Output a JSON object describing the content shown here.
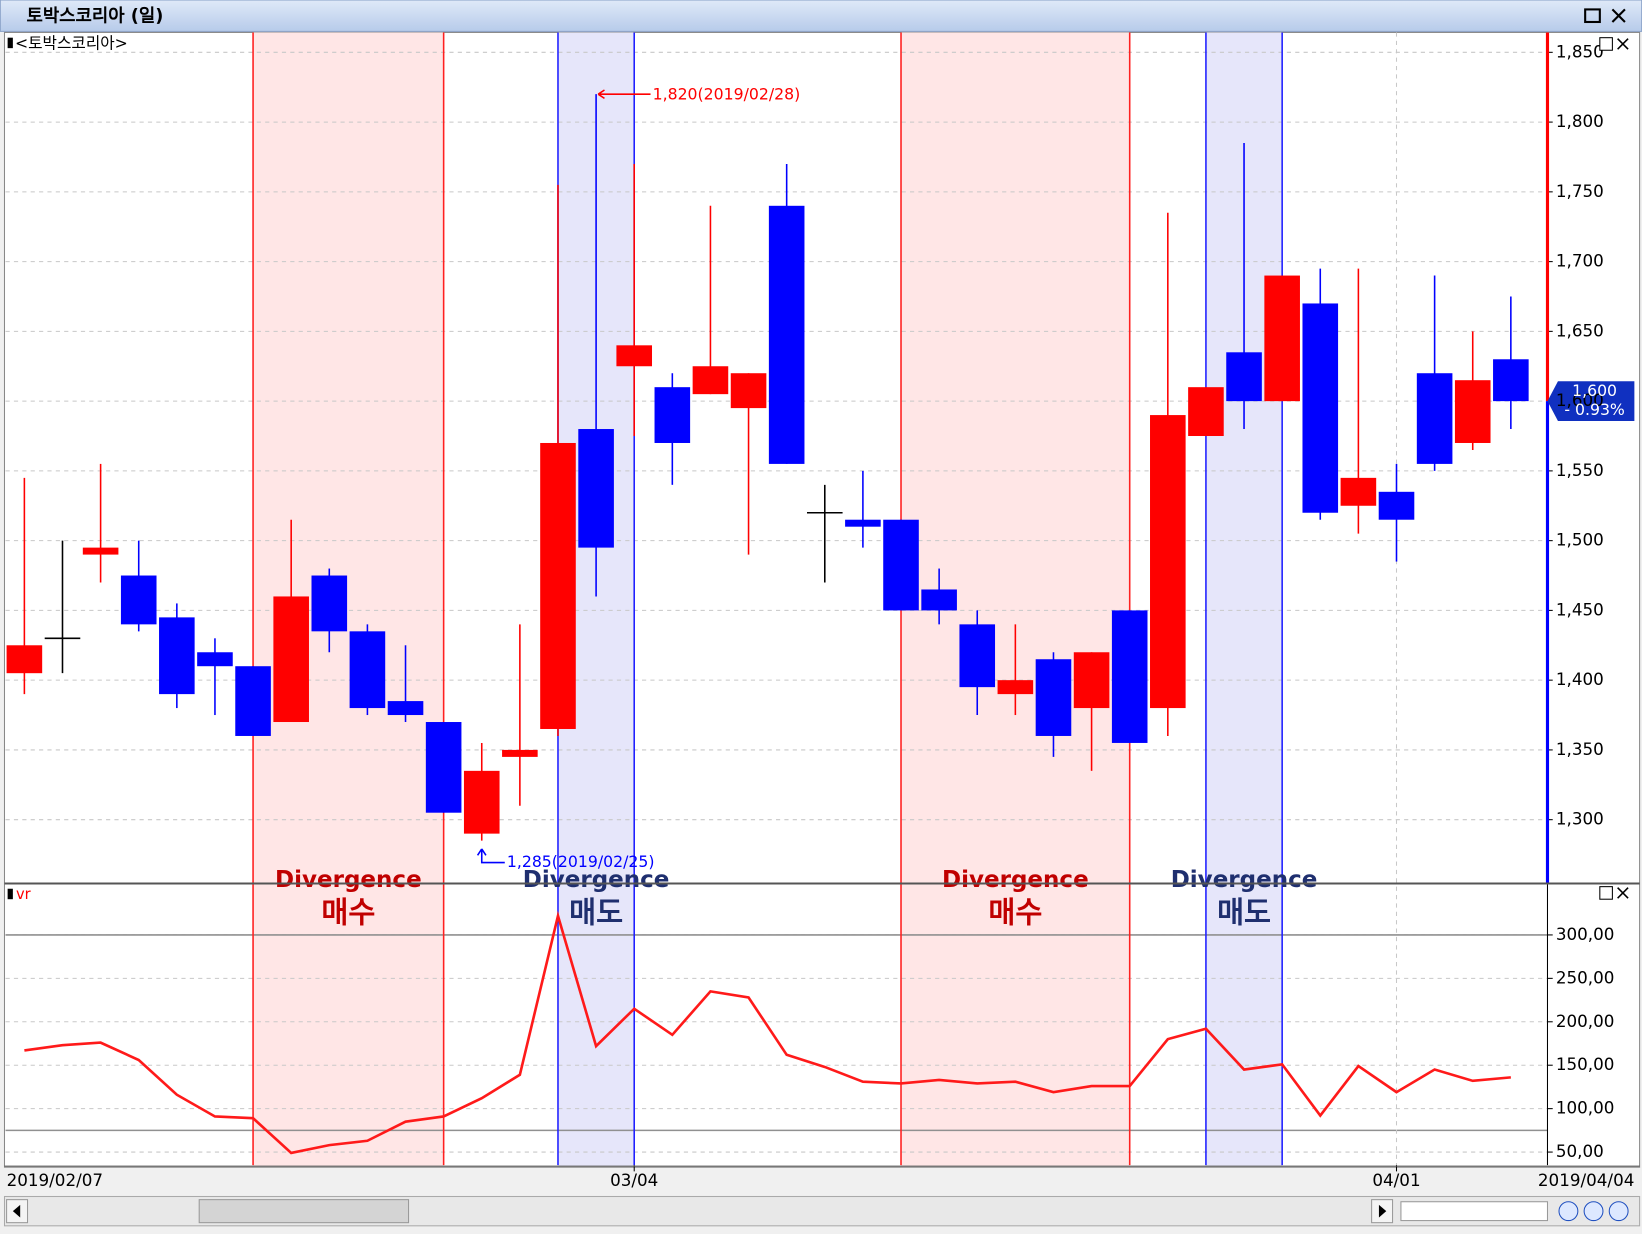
{
  "window_title": "토박스코리아 (일)",
  "chart_data": [
    {
      "type": "candlestick",
      "title": "<토박스코리아>",
      "categories": [
        "2019/02/07",
        null,
        null,
        null,
        null,
        null,
        null,
        null,
        null,
        null,
        null,
        null,
        null,
        null,
        null,
        null,
        "03/04",
        null,
        null,
        null,
        null,
        null,
        null,
        null,
        null,
        null,
        null,
        null,
        null,
        null,
        null,
        null,
        null,
        null,
        null,
        null,
        "04/01",
        null,
        null,
        "2019/04/04"
      ],
      "open": [
        1405,
        1430,
        1490,
        1475,
        1445,
        1420,
        1410,
        1370,
        1475,
        1435,
        1385,
        1370,
        1290,
        1345,
        1365,
        1580,
        1625,
        1610,
        1605,
        1595,
        1740,
        1520,
        1515,
        1515,
        1465,
        1440,
        1390,
        1415,
        1380,
        1450,
        1380,
        1575,
        1635,
        1600,
        1670,
        1525,
        1535,
        1620,
        1570,
        1630
      ],
      "high": [
        1545,
        1500,
        1555,
        1500,
        1455,
        1430,
        1410,
        1515,
        1480,
        1440,
        1425,
        1370,
        1355,
        1440,
        1755,
        1820,
        1770,
        1620,
        1740,
        1620,
        1770,
        1540,
        1550,
        1515,
        1480,
        1450,
        1440,
        1420,
        1420,
        1450,
        1735,
        1610,
        1785,
        1690,
        1695,
        1695,
        1555,
        1690,
        1650,
        1675
      ],
      "low": [
        1390,
        1405,
        1470,
        1435,
        1380,
        1375,
        1360,
        1370,
        1420,
        1375,
        1370,
        1305,
        1285,
        1310,
        1360,
        1460,
        1575,
        1540,
        1605,
        1490,
        1555,
        1470,
        1495,
        1450,
        1440,
        1375,
        1375,
        1345,
        1335,
        1355,
        1360,
        1575,
        1580,
        1600,
        1515,
        1505,
        1485,
        1550,
        1565,
        1580
      ],
      "close": [
        1425,
        1430,
        1495,
        1440,
        1390,
        1410,
        1360,
        1460,
        1435,
        1380,
        1375,
        1305,
        1335,
        1350,
        1570,
        1495,
        1640,
        1570,
        1625,
        1620,
        1555,
        1520,
        1510,
        1450,
        1450,
        1395,
        1400,
        1360,
        1420,
        1355,
        1590,
        1610,
        1600,
        1690,
        1520,
        1545,
        1515,
        1555,
        1615,
        1600
      ],
      "up_color": "#ff0000",
      "down_color": "#0000ff",
      "flat_color": "#000000",
      "ylim": [
        1255,
        1865
      ],
      "yticks": [
        {
          "value": 1300,
          "label": "1,300"
        },
        {
          "value": 1350,
          "label": "1,350"
        },
        {
          "value": 1400,
          "label": "1,400"
        },
        {
          "value": 1450,
          "label": "1,450"
        },
        {
          "value": 1500,
          "label": "1,500"
        },
        {
          "value": 1550,
          "label": "1,550"
        },
        {
          "value": 1600,
          "label": "1,600"
        },
        {
          "value": 1650,
          "label": "1,650"
        },
        {
          "value": 1700,
          "label": "1,700"
        },
        {
          "value": 1750,
          "label": "1,750"
        },
        {
          "value": 1800,
          "label": "1,800"
        },
        {
          "value": 1850,
          "label": "1,850"
        }
      ],
      "grid": true,
      "high_note": "1,820(2019/02/28)",
      "low_note": "1,285(2019/02/25)",
      "last_price": {
        "price": "1,600",
        "change": "- 0.93%"
      },
      "regions": [
        {
          "from": 6,
          "to": 11,
          "label": "Divergence",
          "action": "매수",
          "fill": "#ffe6e6",
          "line": "#ff2020",
          "text_color": "#c00000"
        },
        {
          "from": 14,
          "to": 16,
          "label": "Divergence",
          "action": "매도",
          "fill": "#e6e6fa",
          "line": "#2020ff",
          "text_color": "#1f2f6f"
        },
        {
          "from": 23,
          "to": 29,
          "label": "Divergence",
          "action": "매수",
          "fill": "#ffe6e6",
          "line": "#ff2020",
          "text_color": "#c00000"
        },
        {
          "from": 31,
          "to": 33,
          "label": "Divergence",
          "action": "매도",
          "fill": "#e6e6fa",
          "line": "#2020ff",
          "text_color": "#1f2f6f"
        }
      ]
    },
    {
      "type": "line",
      "title": "vr",
      "values": [
        167,
        173,
        176,
        156,
        116,
        91,
        89,
        49,
        58,
        63,
        85,
        91,
        112,
        139,
        322,
        172,
        215,
        185,
        235,
        228,
        162,
        148,
        131,
        129,
        133,
        129,
        131,
        119,
        126,
        126,
        180,
        192,
        145,
        151,
        92,
        149,
        119,
        145,
        132,
        136
      ],
      "color": "#ff1a1a",
      "ylim": [
        35,
        358
      ],
      "yticks": [
        {
          "value": 50,
          "label": "50,00"
        },
        {
          "value": 100,
          "label": "100,00"
        },
        {
          "value": 150,
          "label": "150,00"
        },
        {
          "value": 200,
          "label": "200,00"
        },
        {
          "value": 250,
          "label": "250,00"
        },
        {
          "value": 300,
          "label": "300,00"
        }
      ],
      "reference_lines": [
        75,
        300
      ],
      "grid": true
    }
  ]
}
